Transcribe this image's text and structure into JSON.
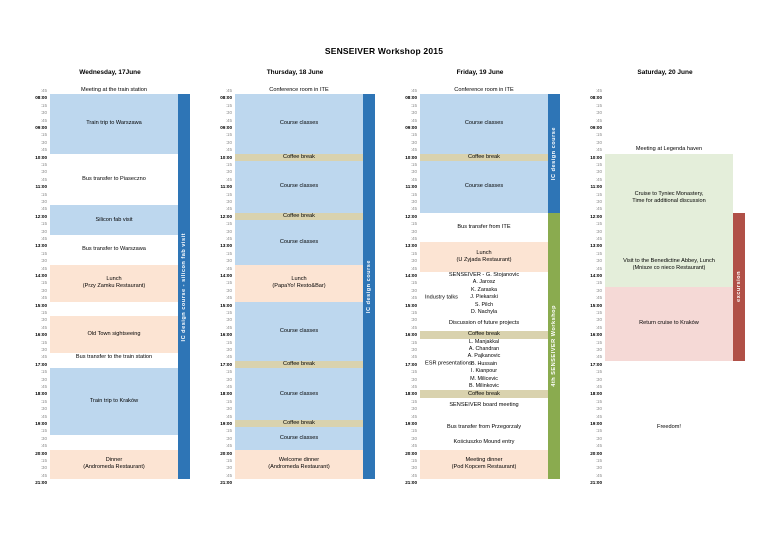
{
  "title": "SENSEIVER Workshop 2015",
  "colors": {
    "event_blue": "#bdd7ee",
    "event_tan": "#d9d2ae",
    "event_peach": "#fce4d3",
    "event_green": "#e4eeda",
    "event_pink": "#f5d9d6",
    "bar_blue": "#2e75b6",
    "bar_green": "#8aab4f",
    "bar_red": "#b05047"
  },
  "time_labels": [
    ":45",
    "08:00",
    ":15",
    ":30",
    ":45",
    "09:00",
    ":15",
    ":30",
    ":45",
    "10:00",
    ":15",
    ":30",
    ":45",
    "11:00",
    ":15",
    ":30",
    ":45",
    "12:00",
    ":15",
    ":30",
    ":45",
    "13:00",
    ":15",
    ":30",
    ":45",
    "14:00",
    ":15",
    ":30",
    ":45",
    "15:00",
    ":15",
    ":30",
    ":45",
    "16:00",
    ":15",
    ":30",
    ":45",
    "17:00",
    ":15",
    ":30",
    ":45",
    "18:00",
    ":15",
    ":30",
    ":45",
    "19:00",
    ":15",
    ":30",
    ":45",
    "20:00",
    ":15",
    ":30",
    ":45",
    "21:00"
  ],
  "days": [
    {
      "header": "Wednesday, 17June",
      "events": [
        {
          "lines": [
            "Meeting at the train station"
          ],
          "start": "07:45",
          "end": "08:00",
          "color": "none"
        },
        {
          "lines": [
            "Train trip to Warszawa"
          ],
          "start": "08:00",
          "end": "10:00",
          "color": "blue"
        },
        {
          "lines": [
            "Bus transfer to Piaseczno"
          ],
          "start": "10:00",
          "end": "11:45",
          "color": "none"
        },
        {
          "lines": [
            "Silicon fab visit"
          ],
          "start": "11:45",
          "end": "12:45",
          "color": "blue"
        },
        {
          "lines": [
            "Bus transfer to Warszawa"
          ],
          "start": "12:45",
          "end": "13:45",
          "color": "none"
        },
        {
          "lines": [
            "Lunch",
            "(Przy Zamku Restaurant)"
          ],
          "start": "13:45",
          "end": "15:00",
          "color": "peach"
        },
        {
          "lines": [
            "Old Town sightseeing"
          ],
          "start": "15:30",
          "end": "16:45",
          "color": "peach"
        },
        {
          "lines": [
            "Bus transfer to the train station"
          ],
          "start": "16:45",
          "end": "17:00",
          "color": "none"
        },
        {
          "lines": [
            "Train trip to Kraków"
          ],
          "start": "17:15",
          "end": "19:30",
          "color": "blue"
        },
        {
          "lines": [
            "Dinner",
            "(Andromeda Restaurant)"
          ],
          "start": "20:00",
          "end": "21:00",
          "color": "peach"
        }
      ],
      "bars": [
        {
          "label": "IC design course - silicon fab visit",
          "start": "08:00",
          "end": "21:00",
          "color": "blue"
        }
      ]
    },
    {
      "header": "Thursday, 18 June",
      "events": [
        {
          "lines": [
            "Conference room in ITE"
          ],
          "start": "07:45",
          "end": "08:00",
          "color": "none"
        },
        {
          "lines": [
            "Course classes"
          ],
          "start": "08:00",
          "end": "10:00",
          "color": "blue"
        },
        {
          "lines": [
            "Coffee break"
          ],
          "start": "10:00",
          "end": "10:15",
          "color": "tan"
        },
        {
          "lines": [
            "Course classes"
          ],
          "start": "10:15",
          "end": "12:00",
          "color": "blue"
        },
        {
          "lines": [
            "Coffee break"
          ],
          "start": "12:00",
          "end": "12:15",
          "color": "tan"
        },
        {
          "lines": [
            "Course classes"
          ],
          "start": "12:15",
          "end": "13:45",
          "color": "blue"
        },
        {
          "lines": [
            "Lunch",
            "(PapaYo! Resto&Bar)"
          ],
          "start": "13:45",
          "end": "15:00",
          "color": "peach"
        },
        {
          "lines": [
            "Course classes"
          ],
          "start": "15:00",
          "end": "17:00",
          "color": "blue"
        },
        {
          "lines": [
            "Coffee break"
          ],
          "start": "17:00",
          "end": "17:15",
          "color": "tan"
        },
        {
          "lines": [
            "Course classes"
          ],
          "start": "17:15",
          "end": "19:00",
          "color": "blue"
        },
        {
          "lines": [
            "Coffee break"
          ],
          "start": "19:00",
          "end": "19:15",
          "color": "tan"
        },
        {
          "lines": [
            "Course classes"
          ],
          "start": "19:15",
          "end": "20:00",
          "color": "blue"
        },
        {
          "lines": [
            "Welcome dinner",
            "(Andromeda Restaurant)"
          ],
          "start": "20:00",
          "end": "21:00",
          "color": "peach"
        }
      ],
      "bars": [
        {
          "label": "IC design course",
          "start": "08:00",
          "end": "21:00",
          "color": "blue"
        }
      ]
    },
    {
      "header": "Friday, 19 June",
      "events": [
        {
          "lines": [
            "Conference room in ITE"
          ],
          "start": "07:45",
          "end": "08:00",
          "color": "none"
        },
        {
          "lines": [
            "Course classes"
          ],
          "start": "08:00",
          "end": "10:00",
          "color": "blue"
        },
        {
          "lines": [
            "Coffee break"
          ],
          "start": "10:00",
          "end": "10:15",
          "color": "tan"
        },
        {
          "lines": [
            "Course classes"
          ],
          "start": "10:15",
          "end": "12:00",
          "color": "blue"
        },
        {
          "lines": [
            "Bus transfer from ITE"
          ],
          "start": "12:00",
          "end": "13:00",
          "color": "none"
        },
        {
          "lines": [
            "Lunch",
            "(U Zyjada Restaurant)"
          ],
          "start": "13:00",
          "end": "14:00",
          "color": "peach"
        },
        {
          "lines": [
            "SENSEIVER - G. Stojanovic"
          ],
          "start": "14:00",
          "end": "14:15",
          "color": "none"
        },
        {
          "lines": [
            "Industry talks"
          ],
          "start": "14:15",
          "end": "15:30",
          "color": "none",
          "names": [
            "A. Jarosz",
            "K. Zaraska",
            "J. Piekarski",
            "S. Pilch",
            "D. Nachyla"
          ]
        },
        {
          "lines": [
            "Discussion of future projects"
          ],
          "start": "15:30",
          "end": "16:00",
          "color": "none"
        },
        {
          "lines": [
            "Coffee break"
          ],
          "start": "16:00",
          "end": "16:15",
          "color": "tan"
        },
        {
          "lines": [
            "ESR presentations"
          ],
          "start": "16:15",
          "end": "18:00",
          "color": "none",
          "names": [
            "L. Manjakkal",
            "A. Chandran",
            "A. Pajkanovic",
            "B. Hussain",
            "I. Kianpour",
            "M. Milicevic",
            "B. Milinkovic"
          ]
        },
        {
          "lines": [
            "Coffee break"
          ],
          "start": "18:00",
          "end": "18:15",
          "color": "tan"
        },
        {
          "lines": [
            "SENSEIVER board meeting"
          ],
          "start": "18:15",
          "end": "18:45",
          "color": "none"
        },
        {
          "lines": [
            "Bus transfer from Przegorzaly"
          ],
          "start": "19:00",
          "end": "19:30",
          "color": "none"
        },
        {
          "lines": [
            "Kościuszko Mound entry"
          ],
          "start": "19:30",
          "end": "20:00",
          "color": "none"
        },
        {
          "lines": [
            "Meeting dinner",
            "(Pod Kopcem Restaurant)"
          ],
          "start": "20:00",
          "end": "21:00",
          "color": "peach"
        }
      ],
      "bars": [
        {
          "label": "IC design course",
          "start": "08:00",
          "end": "12:00",
          "color": "blue"
        },
        {
          "label": "4th SENSEIVER Workshop",
          "start": "12:00",
          "end": "21:00",
          "color": "green"
        }
      ]
    },
    {
      "header": "Saturday, 20 June",
      "events": [
        {
          "lines": [
            "Meeting at Legenda haven"
          ],
          "start": "09:45",
          "end": "10:00",
          "color": "none"
        },
        {
          "lines": [
            "Cruise to Tyniec Monastery,",
            "Time for additional discussion"
          ],
          "start": "10:00",
          "end": "13:00",
          "color": "green"
        },
        {
          "lines": [
            "Visit to the Benedictine Abbey, Lunch",
            "(Mnisze co nieco Restaurant)"
          ],
          "start": "13:00",
          "end": "14:30",
          "color": "green"
        },
        {
          "lines": [
            "Return cruise to Kraków"
          ],
          "start": "14:30",
          "end": "17:00",
          "color": "pink"
        },
        {
          "lines": [
            "Freedom!"
          ],
          "start": "19:00",
          "end": "19:30",
          "color": "none"
        }
      ],
      "bars": [
        {
          "label": "excursion",
          "start": "12:00",
          "end": "17:00",
          "color": "red"
        }
      ]
    }
  ]
}
